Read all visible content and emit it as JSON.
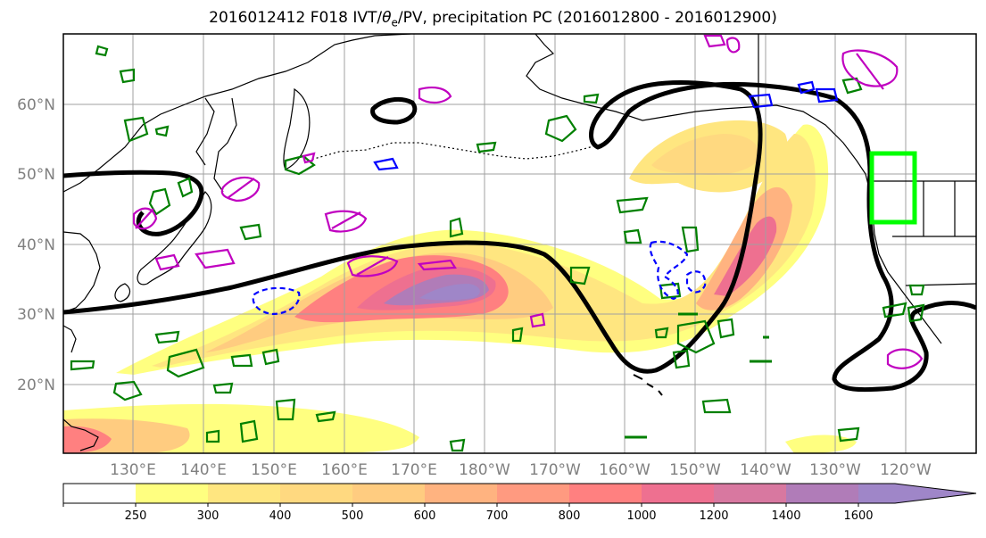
{
  "title": {
    "part1": "2016012412 F018 IVT/",
    "theta": "θ",
    "theta_sub": "e",
    "part2": "/PV, precipitation PC (2016012800 - 2016012900)"
  },
  "map": {
    "lat_labels": [
      "60°N",
      "50°N",
      "40°N",
      "30°N",
      "20°N"
    ],
    "lon_labels": [
      "130°E",
      "140°E",
      "150°E",
      "160°E",
      "170°E",
      "180°W",
      "170°W",
      "160°W",
      "150°W",
      "140°W",
      "130°W",
      "120°W"
    ]
  },
  "colorbar": {
    "labels": [
      "250",
      "300",
      "400",
      "500",
      "600",
      "700",
      "800",
      "1000",
      "1200",
      "1400",
      "1600"
    ],
    "colors": [
      "#ffffff",
      "#ffff80",
      "#ffe680",
      "#ffd980",
      "#ffcc80",
      "#ffb380",
      "#ff9a80",
      "#ff8080",
      "#ee7090",
      "#d878a0",
      "#b07cb8",
      "#9f86c8"
    ]
  },
  "legend_colors": {
    "pv_contour": "#000000",
    "theta_e_green": "#008000",
    "theta_e_magenta": "#c000c0",
    "theta_e_blue": "#0000ff",
    "target_box": "#00ff00"
  }
}
